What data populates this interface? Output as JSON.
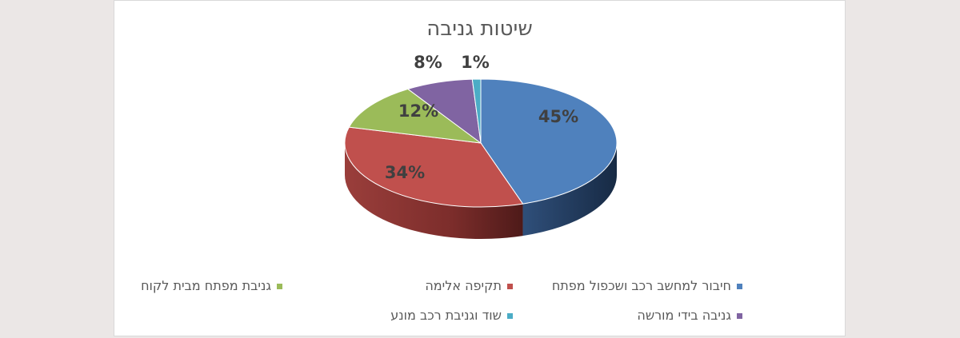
{
  "chart_data": {
    "type": "pie",
    "title": "שיטות גניבה",
    "categories": [
      "חיבור למחשב רכב ושכפול מפתח",
      "תקיפה אלימה",
      "גניבת מפתח מבית לקוח",
      "גניבה בידי מורשה",
      "שוד וגניבת רכב מונע"
    ],
    "values": [
      45,
      34,
      12,
      8,
      1
    ],
    "value_labels": [
      "45%",
      "34%",
      "12%",
      "8%",
      "1%"
    ],
    "colors": [
      "#4f81bd",
      "#c0504d",
      "#9bbb59",
      "#8064a2",
      "#4bacc6"
    ],
    "legend_position": "bottom"
  }
}
